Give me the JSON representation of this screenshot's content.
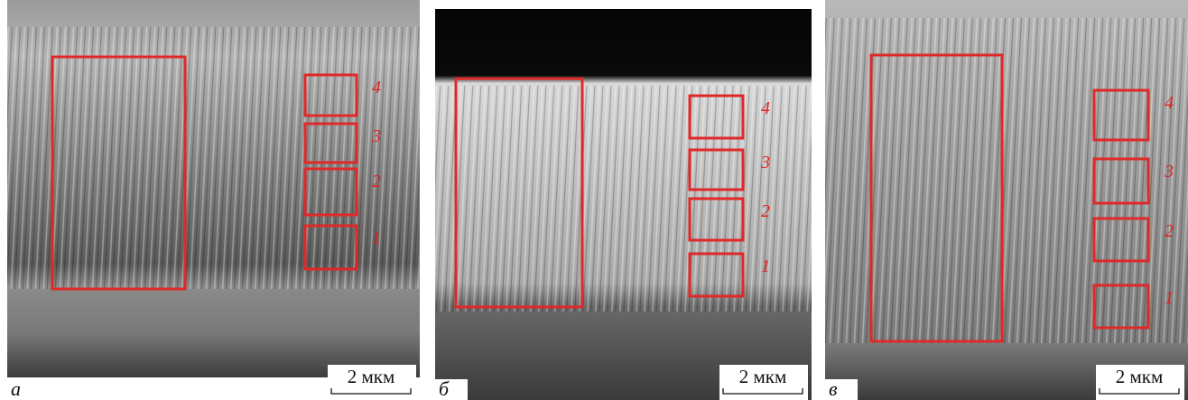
{
  "panels": [
    {
      "letter": "а",
      "scale_bar": "2 мкм",
      "regions": [
        "4",
        "3",
        "2",
        "1"
      ]
    },
    {
      "letter": "б",
      "scale_bar": "2 мкм",
      "regions": [
        "4",
        "3",
        "2",
        "1"
      ]
    },
    {
      "letter": "в",
      "scale_bar": "2 мкм",
      "regions": [
        "4",
        "3",
        "2",
        "1"
      ]
    }
  ]
}
